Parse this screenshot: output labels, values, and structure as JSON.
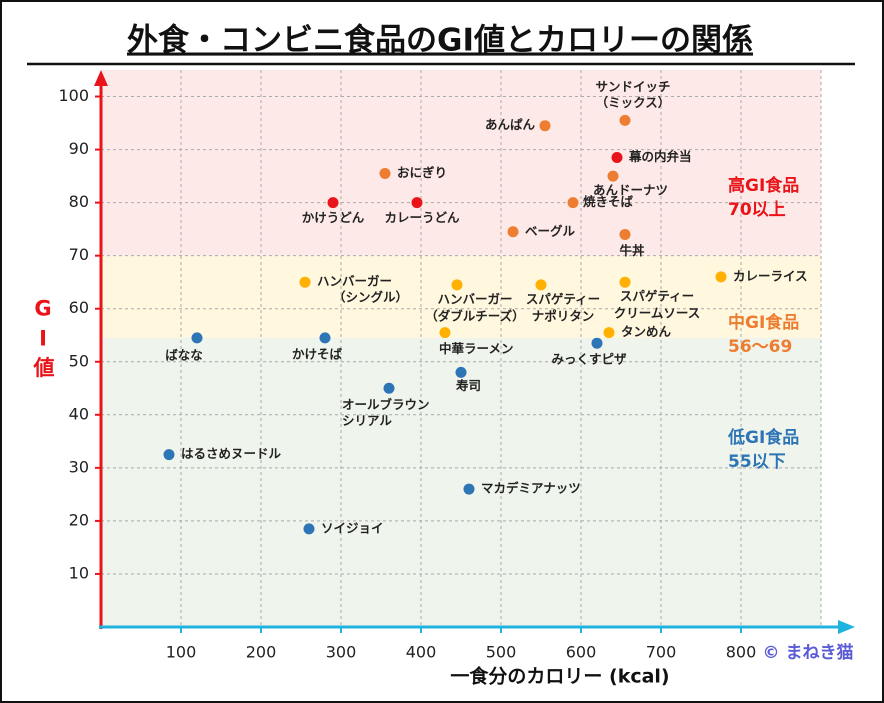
{
  "chart_data": {
    "type": "scatter",
    "title": "外食・コンビニ食品のGI値とカロリーの関係",
    "x_label": "一食分のカロリー (kcal)",
    "y_label": "GI値",
    "credit": "© まねき猫",
    "xlim": [
      0,
      900
    ],
    "ylim": [
      0,
      105
    ],
    "xticks": [
      100,
      200,
      300,
      400,
      500,
      600,
      700,
      800
    ],
    "yticks": [
      10,
      20,
      30,
      40,
      50,
      60,
      70,
      80,
      90,
      100
    ],
    "grid": true,
    "zones": [
      {
        "label": [
          "高GI食品",
          "70以上"
        ],
        "range": [
          70,
          105
        ],
        "color": "#e8141a",
        "background": "#fde9e7"
      },
      {
        "label": [
          "中GI食品",
          "56〜69"
        ],
        "range": [
          54.5,
          70
        ],
        "color": "#ed7d31",
        "background": "#fff7de"
      },
      {
        "label": [
          "低GI食品",
          "55以下"
        ],
        "range": [
          0,
          54.5
        ],
        "color": "#2e75b6",
        "background": "#eff5ec"
      }
    ],
    "labels": [
      [
        "あんぱん"
      ],
      [
        "サンドイッチ",
        "（ミックス）"
      ],
      [
        "幕の内弁当"
      ],
      [
        "おにぎり"
      ],
      [
        "あんドーナツ"
      ],
      [
        "焼きそば"
      ],
      [
        "かけうどん"
      ],
      [
        "カレーうどん"
      ],
      [
        "ベーグル"
      ],
      [
        "牛丼"
      ],
      [
        "カレーライス"
      ],
      [
        "ハンバーガー",
        "（シングル）"
      ],
      [
        "ハンバーガー",
        "（ダブルチーズ）"
      ],
      [
        "スパゲティー",
        "ナポリタン"
      ],
      [
        "スパゲティー",
        "クリームソース"
      ],
      [
        "中華ラーメン"
      ],
      [
        "タンめん"
      ],
      [
        "ばなな"
      ],
      [
        "かけそば"
      ],
      [
        "みっくすピザ"
      ],
      [
        "オールブラウン",
        "シリアル"
      ],
      [
        "寿司"
      ],
      [
        "はるさめヌードル"
      ],
      [
        "マカデミアナッツ"
      ],
      [
        "ソイジョイ"
      ]
    ],
    "x": [
      555,
      655,
      645,
      355,
      640,
      590,
      290,
      395,
      515,
      655,
      775,
      255,
      445,
      550,
      655,
      430,
      635,
      120,
      280,
      620,
      360,
      450,
      85,
      460,
      260
    ],
    "y": [
      94.5,
      95.5,
      88.5,
      85.5,
      85,
      80,
      80,
      80,
      74.5,
      74,
      66,
      65,
      64.5,
      64.5,
      65,
      55.5,
      55.5,
      54.5,
      54.5,
      53.5,
      45,
      48,
      32.5,
      26,
      18.5
    ],
    "colors": [
      "#ed7d31",
      "#ed7d31",
      "#e8141a",
      "#ed7d31",
      "#ed7d31",
      "#ed7d31",
      "#e8141a",
      "#e8141a",
      "#ed7d31",
      "#ed7d31",
      "#ffb000",
      "#ffb000",
      "#ffb000",
      "#ffb000",
      "#ffb000",
      "#ffb000",
      "#ffb000",
      "#2e75b6",
      "#2e75b6",
      "#2e75b6",
      "#2e75b6",
      "#2e75b6",
      "#2e75b6",
      "#2e75b6",
      "#2e75b6"
    ]
  }
}
